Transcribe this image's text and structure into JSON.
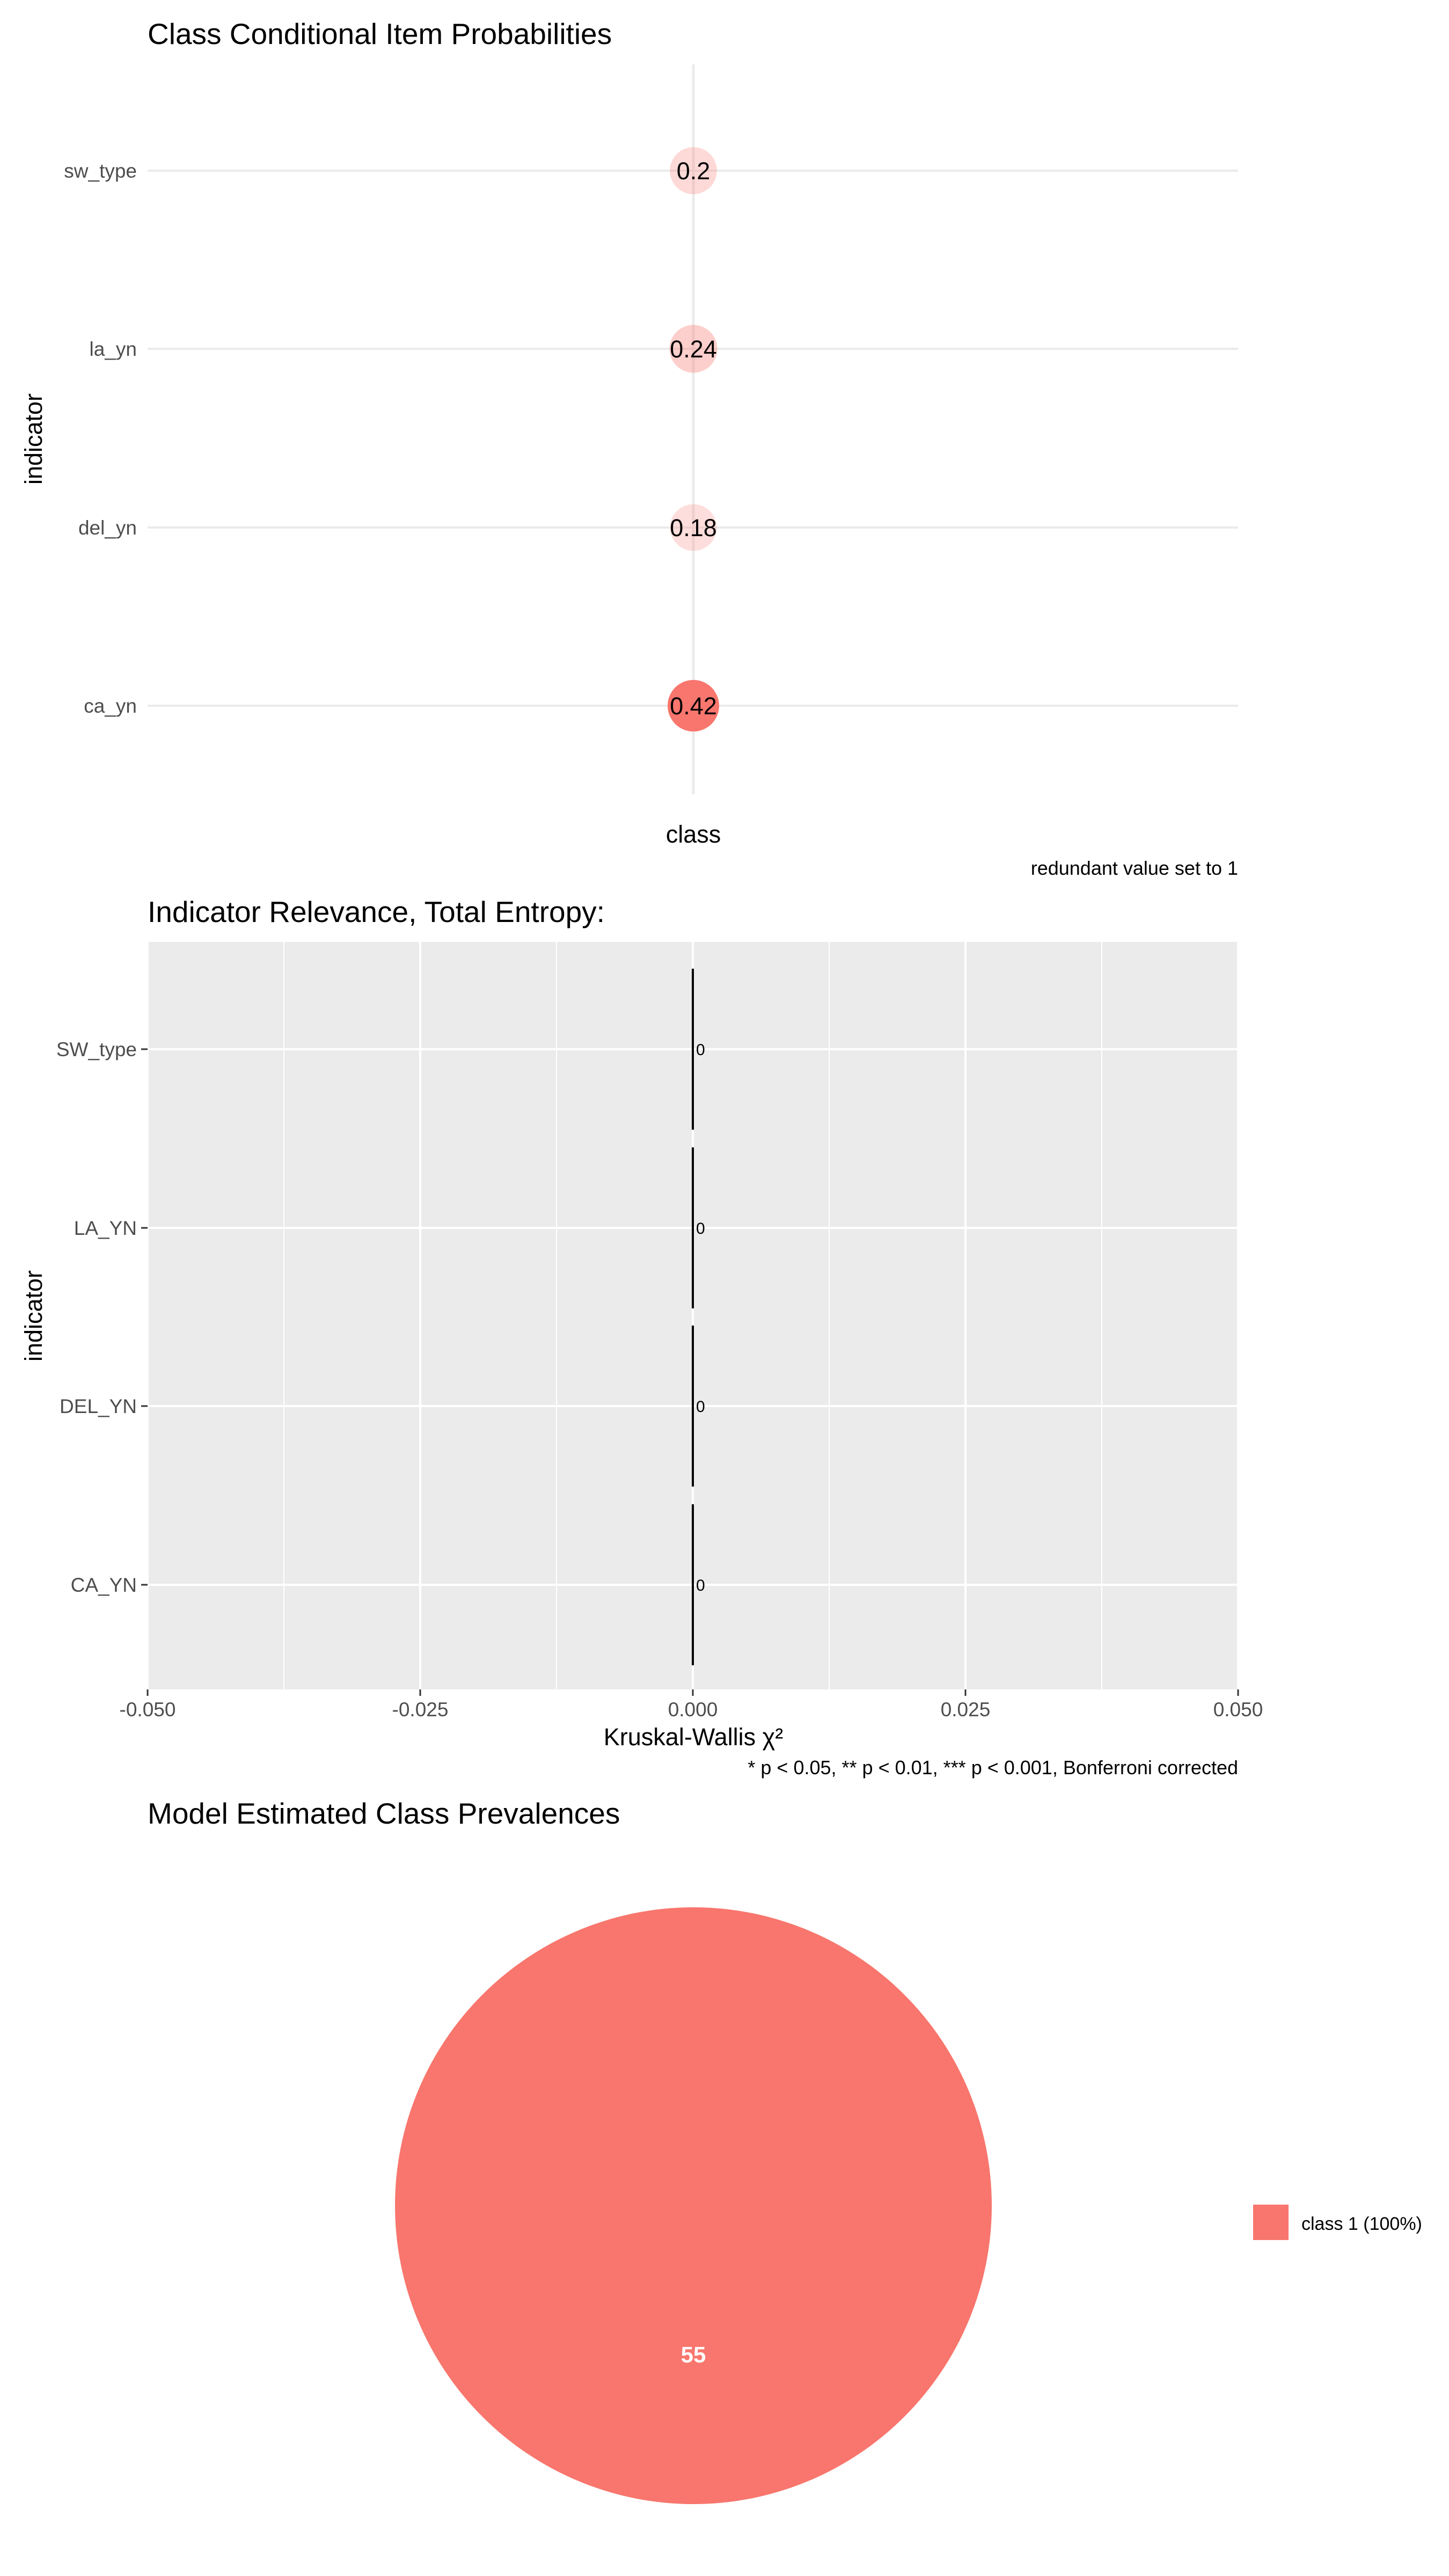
{
  "chart_data": [
    {
      "type": "heatmap",
      "title": "Class Conditional Item Probabilities",
      "xlabel": "class",
      "ylabel": "indicator",
      "caption": "redundant value set to 1",
      "categories": [
        "sw_type",
        "la_yn",
        "del_yn",
        "ca_yn"
      ],
      "values": [
        0.2,
        0.24,
        0.18,
        0.42
      ],
      "labels": [
        "0.2",
        "0.24",
        "0.18",
        "0.42"
      ],
      "grid": true
    },
    {
      "type": "bar",
      "title": "Indicator Relevance, Total Entropy:",
      "xlabel": "Kruskal-Wallis χ²",
      "ylabel": "indicator",
      "caption": "* p < 0.05, **  p < 0.01, *** p < 0.001, Bonferroni corrected",
      "categories": [
        "SW_type",
        "LA_YN",
        "DEL_YN",
        "CA_YN"
      ],
      "values": [
        0,
        0,
        0,
        0
      ],
      "labels": [
        "0",
        "0",
        "0",
        "0"
      ],
      "xlim": [
        -0.05,
        0.05
      ],
      "xticks": [
        "-0.050",
        "-0.025",
        "0.000",
        "0.025",
        "0.050"
      ],
      "orientation": "horizontal",
      "grid": true
    },
    {
      "type": "pie",
      "title": "Model Estimated Class Prevalences",
      "categories": [
        "class 1 (100%)"
      ],
      "values": [
        55
      ],
      "labels": [
        "55"
      ],
      "colors": [
        "#f8766d"
      ],
      "legend": "right"
    }
  ]
}
